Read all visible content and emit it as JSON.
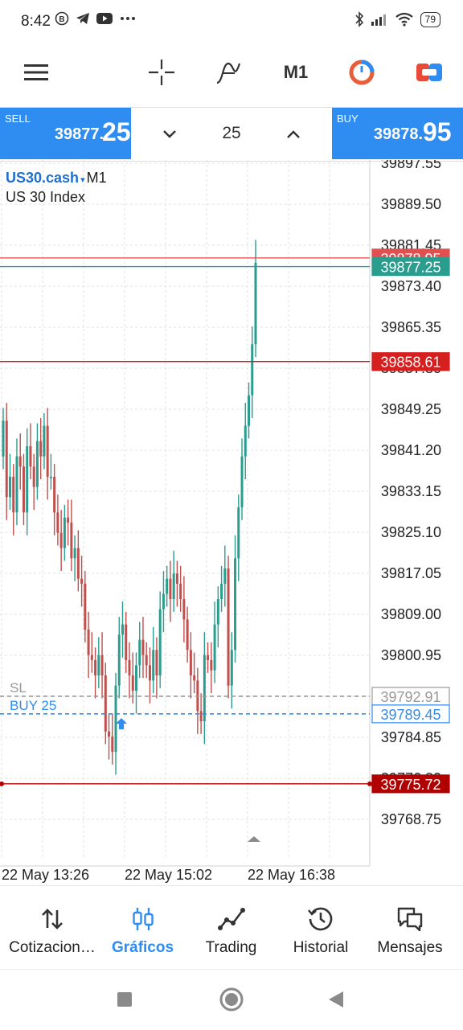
{
  "status_bar": {
    "time": "8:42",
    "battery": "79"
  },
  "toolbar": {
    "timeframe": "M1"
  },
  "quote": {
    "sell_label": "SELL",
    "sell_price_main": "39877.",
    "sell_price_big": "25",
    "buy_label": "BUY",
    "buy_price_main": "39878.",
    "buy_price_big": "95",
    "lot_value": "25"
  },
  "chart_header": {
    "symbol": "US30.cash",
    "caret": "▾",
    "timeframe": "M1",
    "description": "US 30 Index"
  },
  "chart_data": {
    "type": "candlestick",
    "y_axis_ticks": [
      "39897.55",
      "39889.50",
      "39881.45",
      "39873.40",
      "39865.35",
      "39857.30",
      "39849.25",
      "39841.20",
      "39833.15",
      "39825.10",
      "39817.05",
      "39809.00",
      "39800.95",
      "39792.90",
      "39784.85",
      "39776.80",
      "39768.75"
    ],
    "ylim": [
      39765.0,
      39900.0
    ],
    "x_axis_ticks": [
      "22 May 13:26",
      "22 May 15:02",
      "22 May 16:38"
    ],
    "price_lines": [
      {
        "label": "",
        "value": "39878.95",
        "color": "#e05050",
        "style": "solid"
      },
      {
        "label": "",
        "value": "39877.25",
        "color": "#2a9d8f",
        "style": "solid"
      },
      {
        "label": "",
        "value": "39858.61",
        "color": "#d61f1f",
        "style": "solid"
      },
      {
        "label": "SL",
        "value": "39792.91",
        "color": "#999999",
        "style": "dashed"
      },
      {
        "label": "BUY 25",
        "value": "39789.45",
        "color": "#2f8cf0",
        "style": "dashed"
      },
      {
        "label": "",
        "value": "39775.72",
        "color": "#b00000",
        "style": "solid"
      }
    ],
    "bull_color": "#2a9d8f",
    "bear_color": "#c0504d",
    "closes": [
      39847,
      39832,
      39836,
      39829,
      39840,
      39838,
      39829,
      39842,
      39838,
      39834,
      39843,
      39840,
      39846,
      39836,
      39836,
      39829,
      39825,
      39822,
      39828,
      39827,
      39820,
      39822,
      39816,
      39815,
      39806,
      39801,
      39800,
      39797,
      39801,
      39797,
      39786,
      39785,
      39782,
      39795,
      39805,
      39807,
      39800,
      39797,
      39794,
      39799,
      39804,
      39801,
      39799,
      39796,
      39802,
      39797,
      39810,
      39813,
      39816,
      39812,
      39817,
      39815,
      39812,
      39808,
      39802,
      39797,
      39796,
      39790,
      39788,
      39801,
      39800,
      39798,
      39807,
      39812,
      39815,
      39818,
      39795,
      39802,
      39820,
      39830,
      39840,
      39846,
      39852,
      39862,
      39878
    ]
  },
  "bottom_nav": {
    "items": [
      {
        "label": "Cotizacion…",
        "icon": "quotes-arrows-icon",
        "active": false
      },
      {
        "label": "Gráficos",
        "icon": "candlestick-chart-icon",
        "active": true
      },
      {
        "label": "Trading",
        "icon": "trading-line-icon",
        "active": false
      },
      {
        "label": "Historial",
        "icon": "history-clock-icon",
        "active": false
      },
      {
        "label": "Mensajes",
        "icon": "messages-icon",
        "active": false
      }
    ]
  },
  "colors": {
    "accent": "#2f8cf0",
    "sell_box": "#2f8cf0",
    "buy_box": "#2f8cf0"
  }
}
